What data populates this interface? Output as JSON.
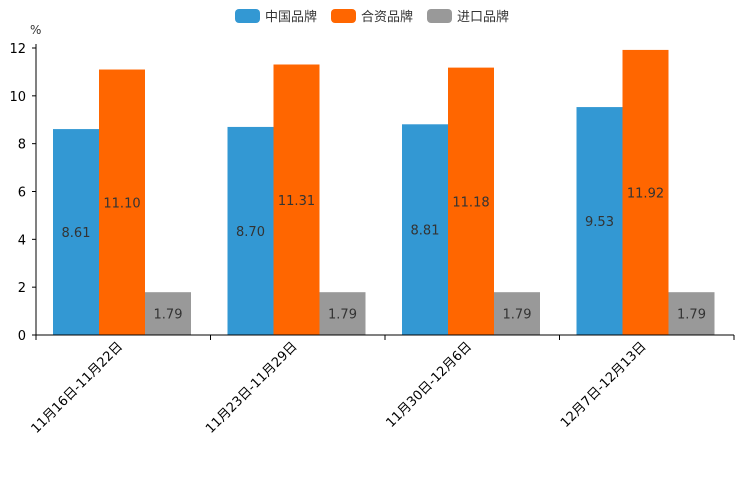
{
  "chart_data": {
    "type": "bar",
    "unit_label": "%",
    "categories": [
      "11月16日-11月22日",
      "11月23日-11月29日",
      "11月30日-12月6日",
      "12月7日-12月13日"
    ],
    "series": [
      {
        "name": "中国品牌",
        "color": "#3398d3",
        "values": [
          8.61,
          8.7,
          8.81,
          9.53
        ]
      },
      {
        "name": "合资品牌",
        "color": "#ff6600",
        "values": [
          11.1,
          11.31,
          11.18,
          11.92
        ]
      },
      {
        "name": "进口品牌",
        "color": "#999999",
        "values": [
          1.79,
          1.79,
          1.79,
          1.79
        ]
      }
    ],
    "value_labels": [
      [
        "8.61",
        "11.10",
        "1.79"
      ],
      [
        "8.70",
        "11.31",
        "1.79"
      ],
      [
        "8.81",
        "11.18",
        "1.79"
      ],
      [
        "9.53",
        "11.92",
        "1.79"
      ]
    ],
    "ylim": [
      0,
      12
    ],
    "yticks": [
      "0",
      "2",
      "4",
      "6",
      "8",
      "10",
      "12"
    ],
    "legend_position": "top-center"
  }
}
